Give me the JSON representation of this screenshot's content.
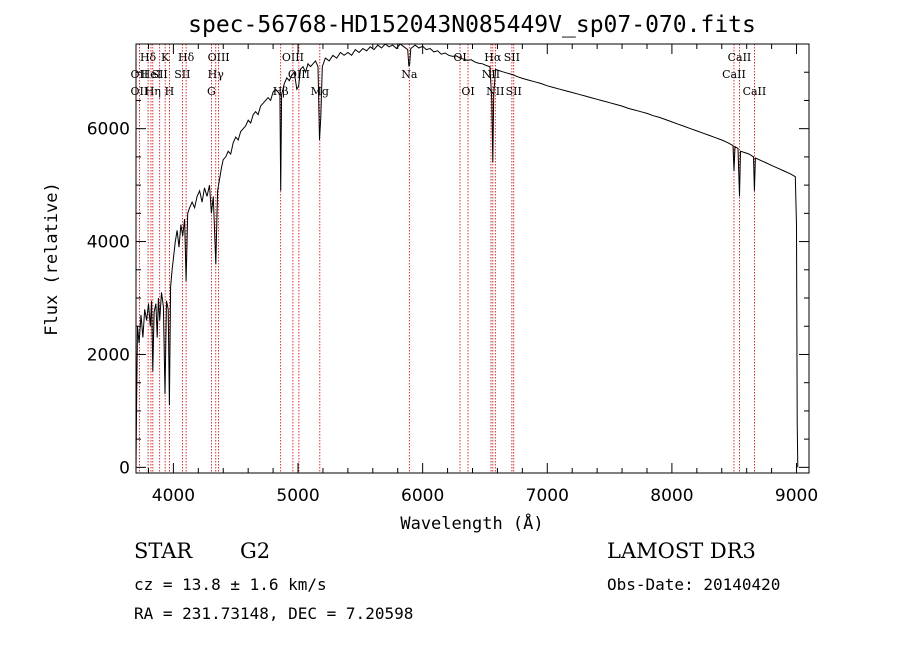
{
  "chart_data": {
    "type": "line",
    "title": "spec-56768-HD152043N085449V_sp07-070.fits",
    "xlabel": "Wavelength (Å)",
    "ylabel": "Flux (relative)",
    "xlim": [
      3700,
      9100
    ],
    "ylim": [
      -100,
      7500
    ],
    "x_ticks": [
      4000,
      5000,
      6000,
      7000,
      8000,
      9000
    ],
    "y_ticks": [
      0,
      2000,
      4000,
      6000
    ],
    "series": [
      {
        "name": "flux",
        "points": [
          [
            3700,
            0
          ],
          [
            3705,
            1100
          ],
          [
            3712,
            2500
          ],
          [
            3725,
            2200
          ],
          [
            3740,
            2700
          ],
          [
            3755,
            2300
          ],
          [
            3770,
            2800
          ],
          [
            3785,
            2600
          ],
          [
            3800,
            2900
          ],
          [
            3815,
            2500
          ],
          [
            3825,
            2950
          ],
          [
            3835,
            1700
          ],
          [
            3845,
            2750
          ],
          [
            3860,
            2900
          ],
          [
            3870,
            2300
          ],
          [
            3880,
            3000
          ],
          [
            3890,
            2600
          ],
          [
            3905,
            3100
          ],
          [
            3920,
            2850
          ],
          [
            3933,
            1300
          ],
          [
            3945,
            2950
          ],
          [
            3958,
            2800
          ],
          [
            3968,
            1100
          ],
          [
            3978,
            3200
          ],
          [
            3990,
            3500
          ],
          [
            4000,
            3700
          ],
          [
            4015,
            4000
          ],
          [
            4030,
            4200
          ],
          [
            4045,
            3900
          ],
          [
            4060,
            4300
          ],
          [
            4075,
            4100
          ],
          [
            4090,
            4400
          ],
          [
            4102,
            3300
          ],
          [
            4115,
            4500
          ],
          [
            4130,
            4600
          ],
          [
            4150,
            4700
          ],
          [
            4170,
            4600
          ],
          [
            4190,
            4800
          ],
          [
            4210,
            4900
          ],
          [
            4230,
            4700
          ],
          [
            4250,
            4950
          ],
          [
            4270,
            4800
          ],
          [
            4290,
            5000
          ],
          [
            4305,
            4500
          ],
          [
            4320,
            4800
          ],
          [
            4340,
            3600
          ],
          [
            4355,
            4900
          ],
          [
            4370,
            5100
          ],
          [
            4385,
            5300
          ],
          [
            4400,
            5450
          ],
          [
            4420,
            5500
          ],
          [
            4440,
            5600
          ],
          [
            4460,
            5550
          ],
          [
            4480,
            5750
          ],
          [
            4500,
            5850
          ],
          [
            4520,
            5800
          ],
          [
            4540,
            5950
          ],
          [
            4560,
            6000
          ],
          [
            4580,
            6050
          ],
          [
            4600,
            6150
          ],
          [
            4620,
            6100
          ],
          [
            4640,
            6250
          ],
          [
            4660,
            6300
          ],
          [
            4680,
            6250
          ],
          [
            4700,
            6400
          ],
          [
            4720,
            6450
          ],
          [
            4740,
            6500
          ],
          [
            4760,
            6550
          ],
          [
            4780,
            6500
          ],
          [
            4800,
            6650
          ],
          [
            4820,
            6700
          ],
          [
            4840,
            6650
          ],
          [
            4855,
            6600
          ],
          [
            4861,
            4900
          ],
          [
            4868,
            6600
          ],
          [
            4890,
            6800
          ],
          [
            4910,
            6900
          ],
          [
            4930,
            6850
          ],
          [
            4950,
            6950
          ],
          [
            4970,
            7000
          ],
          [
            4990,
            6700
          ],
          [
            5005,
            6750
          ],
          [
            5020,
            7050
          ],
          [
            5040,
            7100
          ],
          [
            5060,
            7000
          ],
          [
            5080,
            7150
          ],
          [
            5100,
            7100
          ],
          [
            5120,
            7150
          ],
          [
            5140,
            7200
          ],
          [
            5160,
            7100
          ],
          [
            5172,
            5800
          ],
          [
            5183,
            6200
          ],
          [
            5195,
            7100
          ],
          [
            5220,
            7250
          ],
          [
            5250,
            7200
          ],
          [
            5280,
            7300
          ],
          [
            5310,
            7250
          ],
          [
            5340,
            7350
          ],
          [
            5370,
            7300
          ],
          [
            5400,
            7350
          ],
          [
            5430,
            7300
          ],
          [
            5460,
            7400
          ],
          [
            5490,
            7350
          ],
          [
            5520,
            7420
          ],
          [
            5550,
            7380
          ],
          [
            5580,
            7450
          ],
          [
            5610,
            7400
          ],
          [
            5640,
            7480
          ],
          [
            5670,
            7430
          ],
          [
            5700,
            7500
          ],
          [
            5730,
            7450
          ],
          [
            5760,
            7480
          ],
          [
            5790,
            7420
          ],
          [
            5820,
            7500
          ],
          [
            5850,
            7450
          ],
          [
            5880,
            7400
          ],
          [
            5890,
            7100
          ],
          [
            5896,
            7150
          ],
          [
            5905,
            7420
          ],
          [
            5940,
            7480
          ],
          [
            5970,
            7430
          ],
          [
            6000,
            7460
          ],
          [
            6030,
            7400
          ],
          [
            6060,
            7420
          ],
          [
            6090,
            7360
          ],
          [
            6120,
            7380
          ],
          [
            6150,
            7320
          ],
          [
            6180,
            7340
          ],
          [
            6210,
            7300
          ],
          [
            6240,
            7280
          ],
          [
            6270,
            7290
          ],
          [
            6300,
            7250
          ],
          [
            6330,
            7230
          ],
          [
            6360,
            7210
          ],
          [
            6390,
            7220
          ],
          [
            6420,
            7180
          ],
          [
            6450,
            7160
          ],
          [
            6480,
            7150
          ],
          [
            6510,
            7120
          ],
          [
            6540,
            7100
          ],
          [
            6555,
            6500
          ],
          [
            6563,
            5400
          ],
          [
            6570,
            6600
          ],
          [
            6585,
            7050
          ],
          [
            6610,
            7030
          ],
          [
            6640,
            7010
          ],
          [
            6670,
            6990
          ],
          [
            6700,
            6970
          ],
          [
            6730,
            6950
          ],
          [
            6760,
            6920
          ],
          [
            6800,
            6890
          ],
          [
            6850,
            6860
          ],
          [
            6900,
            6830
          ],
          [
            6950,
            6800
          ],
          [
            7000,
            6760
          ],
          [
            7050,
            6730
          ],
          [
            7100,
            6700
          ],
          [
            7150,
            6670
          ],
          [
            7200,
            6640
          ],
          [
            7250,
            6610
          ],
          [
            7300,
            6580
          ],
          [
            7350,
            6550
          ],
          [
            7400,
            6520
          ],
          [
            7450,
            6490
          ],
          [
            7500,
            6460
          ],
          [
            7550,
            6430
          ],
          [
            7600,
            6400
          ],
          [
            7650,
            6360
          ],
          [
            7700,
            6330
          ],
          [
            7750,
            6300
          ],
          [
            7800,
            6270
          ],
          [
            7850,
            6230
          ],
          [
            7900,
            6200
          ],
          [
            7950,
            6160
          ],
          [
            8000,
            6120
          ],
          [
            8050,
            6080
          ],
          [
            8100,
            6040
          ],
          [
            8150,
            6000
          ],
          [
            8200,
            5960
          ],
          [
            8250,
            5920
          ],
          [
            8300,
            5880
          ],
          [
            8350,
            5840
          ],
          [
            8400,
            5800
          ],
          [
            8450,
            5750
          ],
          [
            8490,
            5700
          ],
          [
            8498,
            5250
          ],
          [
            8506,
            5680
          ],
          [
            8530,
            5650
          ],
          [
            8542,
            4800
          ],
          [
            8550,
            5600
          ],
          [
            8580,
            5580
          ],
          [
            8620,
            5550
          ],
          [
            8655,
            5500
          ],
          [
            8662,
            4900
          ],
          [
            8670,
            5480
          ],
          [
            8700,
            5450
          ],
          [
            8750,
            5400
          ],
          [
            8800,
            5350
          ],
          [
            8850,
            5300
          ],
          [
            8900,
            5250
          ],
          [
            8950,
            5200
          ],
          [
            8990,
            5150
          ],
          [
            9000,
            4300
          ],
          [
            9005,
            800
          ],
          [
            9010,
            0
          ]
        ]
      }
    ],
    "spectral_lines": [
      {
        "label": "Hδ",
        "wavelength": 3797,
        "row": 1
      },
      {
        "label": "OII",
        "wavelength": 3727,
        "row": 2
      },
      {
        "label": "OII",
        "wavelength": 3727,
        "row": 3
      },
      {
        "label": "HeI",
        "wavelength": 3820,
        "row": 2
      },
      {
        "label": "Hη",
        "wavelength": 3835,
        "row": 3
      },
      {
        "label": "K",
        "wavelength": 3934,
        "row": 1
      },
      {
        "label": "SII",
        "wavelength": 3890,
        "row": 2
      },
      {
        "label": "H",
        "wavelength": 3968,
        "row": 3
      },
      {
        "label": "Hδ",
        "wavelength": 4102,
        "row": 1
      },
      {
        "label": "SII",
        "wavelength": 4072,
        "row": 2
      },
      {
        "label": "OIII",
        "wavelength": 4363,
        "row": 1
      },
      {
        "label": "Hγ",
        "wavelength": 4340,
        "row": 2
      },
      {
        "label": "G",
        "wavelength": 4305,
        "row": 3
      },
      {
        "label": "OIII",
        "wavelength": 4959,
        "row": 1
      },
      {
        "label": "OIII",
        "wavelength": 5007,
        "row": 2
      },
      {
        "label": "Hβ",
        "wavelength": 4861,
        "row": 3
      },
      {
        "label": "Mg",
        "wavelength": 5175,
        "row": 3
      },
      {
        "label": "OI",
        "wavelength": 6300,
        "row": 1
      },
      {
        "label": "Na",
        "wavelength": 5893,
        "row": 2
      },
      {
        "label": "OI",
        "wavelength": 6364,
        "row": 3
      },
      {
        "label": "Hα",
        "wavelength": 6563,
        "row": 1
      },
      {
        "label": "SII",
        "wavelength": 6716,
        "row": 1
      },
      {
        "label": "NII",
        "wavelength": 6548,
        "row": 2
      },
      {
        "label": "NII",
        "wavelength": 6583,
        "row": 3
      },
      {
        "label": "SII",
        "wavelength": 6731,
        "row": 3
      },
      {
        "label": "CaII",
        "wavelength": 8542,
        "row": 1
      },
      {
        "label": "CaII",
        "wavelength": 8498,
        "row": 2
      },
      {
        "label": "CaII",
        "wavelength": 8662,
        "row": 3
      }
    ]
  },
  "info": {
    "object_type": "STAR",
    "subclass": "G2",
    "survey": "LAMOST DR3",
    "redshift": "cz = 13.8 ± 1.6 km/s",
    "obs_date": "Obs-Date: 20140420",
    "coordinates": "RA = 231.73148, DEC =   7.20598"
  },
  "colors": {
    "line_marker": "#cc0000",
    "spectrum": "#000000"
  }
}
